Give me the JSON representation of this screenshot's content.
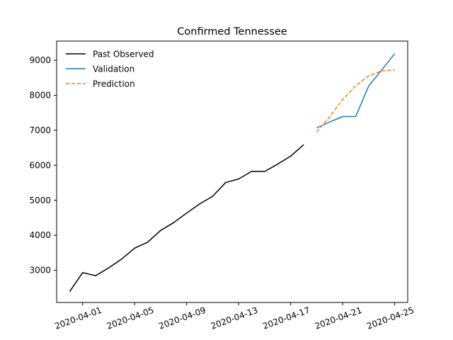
{
  "chart_data": {
    "type": "line",
    "title": "Confirmed Tennessee",
    "xlabel": "",
    "ylabel": "",
    "xlim": [
      "2020-03-30",
      "2020-04-26"
    ],
    "ylim": [
      2080,
      9550
    ],
    "x_ticks": [
      "2020-04-01",
      "2020-04-05",
      "2020-04-09",
      "2020-04-13",
      "2020-04-17",
      "2020-04-21",
      "2020-04-25"
    ],
    "y_ticks": [
      3000,
      4000,
      5000,
      6000,
      7000,
      8000,
      9000
    ],
    "grid": false,
    "legend_position": "upper-left",
    "series": [
      {
        "name": "Past Observed",
        "color": "#000000",
        "style": "solid",
        "x": [
          "2020-03-31",
          "2020-04-01",
          "2020-04-02",
          "2020-04-03",
          "2020-04-04",
          "2020-04-05",
          "2020-04-06",
          "2020-04-07",
          "2020-04-08",
          "2020-04-09",
          "2020-04-10",
          "2020-04-11",
          "2020-04-12",
          "2020-04-13",
          "2020-04-14",
          "2020-04-15",
          "2020-04-16",
          "2020-04-17",
          "2020-04-18"
        ],
        "values": [
          2390,
          2933,
          2845,
          3067,
          3321,
          3633,
          3802,
          4138,
          4362,
          4634,
          4895,
          5114,
          5508,
          5610,
          5827,
          5823,
          6033,
          6263,
          6589
        ]
      },
      {
        "name": "Validation",
        "color": "#1f77b4",
        "style": "solid",
        "x": [
          "2020-04-19",
          "2020-04-20",
          "2020-04-21",
          "2020-04-22",
          "2020-04-23",
          "2020-04-24",
          "2020-04-25"
        ],
        "values": [
          7070,
          7238,
          7394,
          7394,
          8266,
          8726,
          9189
        ]
      },
      {
        "name": "Prediction",
        "color": "#ff7f0e",
        "style": "dashed",
        "x": [
          "2020-04-19",
          "2020-04-20",
          "2020-04-21",
          "2020-04-22",
          "2020-04-23",
          "2020-04-24",
          "2020-04-25"
        ],
        "values": [
          6950,
          7390,
          7880,
          8270,
          8560,
          8700,
          8730
        ]
      }
    ]
  }
}
